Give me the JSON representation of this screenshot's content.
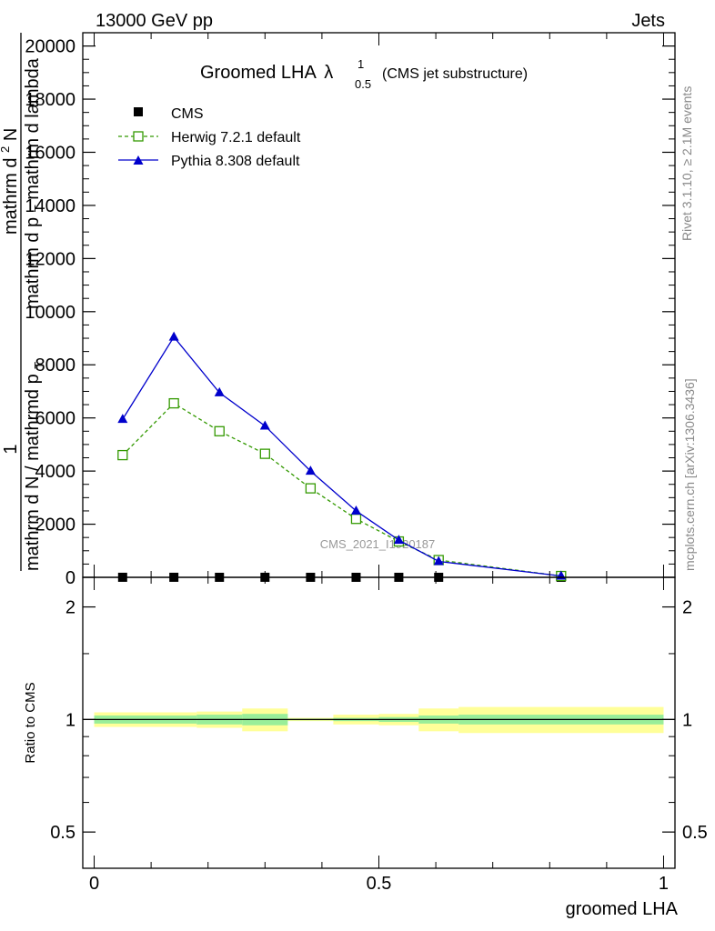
{
  "header": {
    "left": "13000 GeV pp",
    "right": "Jets"
  },
  "side_labels": {
    "rivet": "Rivet 3.1.10, ≥ 2.1M events",
    "mcplots": "mcplots.cern.ch [arXiv:1306.3436]"
  },
  "title": {
    "main": "Groomed LHA",
    "lambda": "λ",
    "sup": "1",
    "sub": "0.5",
    "suffix": "(CMS jet substructure)"
  },
  "watermark": "CMS_2021_I1920187",
  "main_ylabel": {
    "frac_num": "1",
    "frac_den": "mathrm d N / mathrmd p",
    "frac_den_sub": "T",
    "top_num": "mathrm d",
    "top_num_sup": "2",
    "top_num_tail": "N",
    "top_den": "mathrm d p",
    "top_den_sub": "T",
    "top_den_tail": "mathrm d lambda"
  },
  "xlabel": "groomed LHA",
  "x_ticks": [
    "0",
    "0.5",
    "1"
  ],
  "main_y_ticks": [
    "0",
    "2000",
    "4000",
    "6000",
    "8000",
    "10000",
    "12000",
    "14000",
    "16000",
    "18000",
    "20000"
  ],
  "ratio_ylabel": "Ratio to CMS",
  "ratio_y_ticks": [
    "0.5",
    "1",
    "2"
  ],
  "legend": [
    {
      "label": "CMS",
      "color": "#000000",
      "marker": "square-filled"
    },
    {
      "label": "Herwig 7.2.1 default",
      "color": "#339900",
      "marker": "square-open",
      "dash": true
    },
    {
      "label": "Pythia 8.308 default",
      "color": "#0000cc",
      "marker": "triangle-filled"
    }
  ],
  "chart_data": [
    {
      "type": "line",
      "title": "Groomed LHA λ^1_0.5 (CMS jet substructure)",
      "xlabel": "groomed LHA",
      "ylabel": "1 / (mathrm d N / mathrmd p_T) mathrm d^2 N / (mathrm d p_T mathrm d lambda)",
      "xlim": [
        -0.02,
        1.02
      ],
      "ylim": [
        0,
        20500
      ],
      "series": [
        {
          "name": "CMS",
          "color": "#000000",
          "x": [
            0.05,
            0.14,
            0.22,
            0.3,
            0.38,
            0.46,
            0.535,
            0.605,
            0.82
          ],
          "values": [
            2,
            2,
            1,
            2,
            1,
            1,
            1,
            1,
            1
          ]
        },
        {
          "name": "Herwig 7.2.1 default",
          "color": "#339900",
          "x": [
            0.05,
            0.14,
            0.22,
            0.3,
            0.38,
            0.46,
            0.535,
            0.605,
            0.82
          ],
          "values": [
            4600,
            6550,
            5500,
            4650,
            3350,
            2200,
            1350,
            650,
            50
          ]
        },
        {
          "name": "Pythia 8.308 default",
          "color": "#0000cc",
          "x": [
            0.05,
            0.14,
            0.22,
            0.3,
            0.38,
            0.46,
            0.535,
            0.605,
            0.82
          ],
          "values": [
            5950,
            9050,
            6950,
            5700,
            4000,
            2500,
            1400,
            600,
            50
          ]
        }
      ]
    },
    {
      "type": "area",
      "ylabel": "Ratio to CMS",
      "xlim": [
        -0.02,
        1.02
      ],
      "ylim": [
        0.4,
        2.4
      ],
      "log_y": true,
      "reference": 1,
      "bands": {
        "x_edges": [
          0,
          0.18,
          0.26,
          0.34,
          0.42,
          0.5,
          0.57,
          0.64,
          1.0
        ],
        "inner_lo": [
          0.975,
          0.97,
          0.965,
          0.995,
          0.99,
          0.985,
          0.975,
          0.97
        ],
        "inner_hi": [
          1.025,
          1.03,
          1.035,
          1.005,
          1.01,
          1.015,
          1.025,
          1.03
        ],
        "outer_lo": [
          0.955,
          0.95,
          0.93,
          0.99,
          0.97,
          0.965,
          0.93,
          0.92
        ],
        "outer_hi": [
          1.045,
          1.05,
          1.07,
          1.01,
          1.03,
          1.035,
          1.07,
          1.08
        ],
        "inner_color": "#99ee99",
        "outer_color": "#ffff99"
      }
    }
  ]
}
